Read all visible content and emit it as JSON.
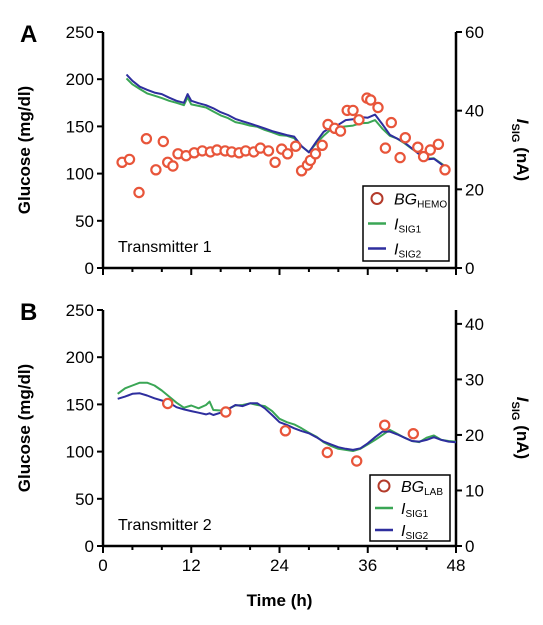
{
  "chart_data": [
    {
      "type": "line",
      "panel_letter": "A",
      "annotation": "Transmitter 1",
      "xlim": [
        0,
        48
      ],
      "ylim": [
        0,
        250
      ],
      "y2lim": [
        0,
        60
      ],
      "x_ticks": [
        0,
        12,
        24,
        36,
        48
      ],
      "y_ticks": [
        0,
        50,
        100,
        150,
        200,
        250
      ],
      "y2_ticks": [
        0,
        20,
        40,
        60
      ],
      "ylabel": "Glucose (mg/dl)",
      "y2label": {
        "main": "I",
        "sub": "SIG",
        "unit": " (nA)"
      },
      "legend": {
        "position": "bottom-right",
        "entries": [
          {
            "main": "BG",
            "sub": "HEMO",
            "marker": "circle"
          },
          {
            "main": "I",
            "sub": "SIG1",
            "marker": "line"
          },
          {
            "main": "I",
            "sub": "SIG2",
            "marker": "line"
          }
        ]
      },
      "colors": {
        "marker": "#e8553a",
        "sig1": "#3aa655",
        "sig2": "#2e2e9e"
      },
      "series": [
        {
          "name": "BG_HEMO",
          "kind": "scatter",
          "x": [
            2.6,
            3.6,
            4.9,
            5.9,
            7.2,
            8.2,
            8.8,
            9.5,
            10.2,
            11.3,
            12.4,
            13.5,
            14.6,
            15.5,
            16.6,
            17.5,
            18.5,
            19.4,
            20.5,
            21.4,
            22.5,
            23.4,
            24.3,
            25.1,
            26.2,
            27.0,
            27.8,
            28.2,
            28.9,
            29.8,
            30.6,
            31.5,
            32.3,
            33.2,
            34.0,
            34.8,
            35.9,
            36.4,
            37.4,
            38.4,
            39.2,
            40.4,
            41.1,
            42.8,
            43.6,
            44.5,
            45.6,
            46.5
          ],
          "values": [
            112,
            115,
            80,
            137,
            104,
            134,
            112,
            108,
            121,
            119,
            122,
            124,
            123,
            125,
            124,
            123,
            122,
            124,
            123,
            127,
            124,
            112,
            126,
            121,
            129,
            103,
            109,
            114,
            121,
            130,
            152,
            148,
            145,
            167,
            167,
            157,
            180,
            178,
            170,
            127,
            154,
            117,
            138,
            128,
            118,
            125,
            131,
            104
          ]
        },
        {
          "name": "I_SIG1",
          "kind": "line",
          "axis": "y2",
          "x": [
            3.2,
            4.0,
            5.0,
            6.0,
            7.0,
            8.0,
            9.0,
            10.0,
            11.0,
            11.5,
            12.0,
            13.0,
            14.0,
            15.0,
            16.0,
            17.0,
            18.0,
            19.0,
            20.0,
            21.0,
            22.0,
            23.0,
            24.0,
            25.0,
            26.0,
            27.0,
            28.0,
            29.0,
            30.0,
            31.0,
            32.0,
            33.0,
            34.0,
            35.0,
            36.0,
            37.0,
            38.0,
            39.0,
            40.0,
            41.0,
            42.0,
            43.0,
            44.0,
            45.0,
            46.5
          ],
          "values": [
            48.2,
            46.7,
            45.5,
            44.4,
            43.8,
            43.2,
            42.5,
            42.0,
            41.4,
            43.4,
            41.6,
            41.2,
            40.8,
            39.8,
            38.8,
            38.1,
            37.1,
            36.7,
            36.2,
            35.9,
            35.1,
            34.5,
            33.8,
            33.6,
            33.0,
            30.9,
            29.5,
            31.7,
            33.6,
            35.3,
            35.8,
            36.0,
            36.2,
            36.8,
            36.9,
            37.6,
            35.4,
            33.6,
            32.9,
            31.7,
            30.3,
            29.1,
            27.8,
            27.9,
            25.9
          ]
        },
        {
          "name": "I_SIG2",
          "kind": "line",
          "axis": "y2",
          "x": [
            3.2,
            4.0,
            5.0,
            6.0,
            7.0,
            8.0,
            9.0,
            10.0,
            11.0,
            11.5,
            12.0,
            13.0,
            14.0,
            15.0,
            16.0,
            17.0,
            18.0,
            19.0,
            20.0,
            21.0,
            22.0,
            23.0,
            24.0,
            25.0,
            26.0,
            27.0,
            28.0,
            29.0,
            30.0,
            31.0,
            32.0,
            33.0,
            34.0,
            35.0,
            36.0,
            37.0,
            38.0,
            39.0,
            40.0,
            41.0,
            42.0,
            43.0,
            44.0,
            45.0,
            46.5
          ],
          "values": [
            49.2,
            47.6,
            46.1,
            45.3,
            44.6,
            44.2,
            43.3,
            42.5,
            42.0,
            44.2,
            42.5,
            41.9,
            41.4,
            40.6,
            39.6,
            38.9,
            37.9,
            37.3,
            36.7,
            36.1,
            35.5,
            34.8,
            34.3,
            33.8,
            33.4,
            31.0,
            29.4,
            32.1,
            34.6,
            35.8,
            36.4,
            37.6,
            37.8,
            38.4,
            38.2,
            39.0,
            36.5,
            33.9,
            32.9,
            31.9,
            30.4,
            28.9,
            27.6,
            27.8,
            25.7
          ]
        }
      ]
    },
    {
      "type": "line",
      "panel_letter": "B",
      "annotation": "Transmitter 2",
      "xlim": [
        0,
        48
      ],
      "ylim": [
        0,
        250
      ],
      "y2lim": [
        0,
        42.5
      ],
      "x_ticks": [
        0,
        12,
        24,
        36,
        48
      ],
      "y_ticks": [
        0,
        50,
        100,
        150,
        200,
        250
      ],
      "y2_ticks": [
        0,
        10,
        20,
        30,
        40
      ],
      "xlabel": "Time (h)",
      "ylabel": "Glucose (mg/dl)",
      "y2label": {
        "main": "I",
        "sub": "SIG",
        "unit": " (nA)"
      },
      "legend": {
        "position": "bottom-right",
        "entries": [
          {
            "main": "BG",
            "sub": "LAB",
            "marker": "circle"
          },
          {
            "main": "I",
            "sub": "SIG1",
            "marker": "line"
          },
          {
            "main": "I",
            "sub": "SIG2",
            "marker": "line"
          }
        ]
      },
      "colors": {
        "marker": "#e8553a",
        "sig1": "#3aa655",
        "sig2": "#2e2e9e"
      },
      "series": [
        {
          "name": "BG_LAB",
          "kind": "scatter",
          "x": [
            8.8,
            16.7,
            24.8,
            30.5,
            34.5,
            38.3,
            42.2
          ],
          "values": [
            151,
            142,
            122,
            99,
            90,
            128,
            119
          ]
        },
        {
          "name": "I_SIG1",
          "kind": "line",
          "axis": "y2",
          "x": [
            2.0,
            3.0,
            4.0,
            5.0,
            6.0,
            7.0,
            8.0,
            9.0,
            10.0,
            11.0,
            12.0,
            13.0,
            14.0,
            14.5,
            15.0,
            16.0,
            17.0,
            18.0,
            19.0,
            20.0,
            21.0,
            22.0,
            23.0,
            24.0,
            25.0,
            26.0,
            27.0,
            28.0,
            29.0,
            30.0,
            31.0,
            32.0,
            33.0,
            34.0,
            35.0,
            36.0,
            37.0,
            38.0,
            39.0,
            40.0,
            41.0,
            42.0,
            43.0,
            44.0,
            45.0,
            46.0,
            47.0,
            48.0
          ],
          "values": [
            27.4,
            28.4,
            28.9,
            29.4,
            29.4,
            28.9,
            28.0,
            26.9,
            25.8,
            24.9,
            25.3,
            24.8,
            25.4,
            26.0,
            24.5,
            24.4,
            24.7,
            25.3,
            25.4,
            25.7,
            25.4,
            25.2,
            24.3,
            22.9,
            22.3,
            21.9,
            21.2,
            20.4,
            19.7,
            18.7,
            18.0,
            17.5,
            17.3,
            17.1,
            17.5,
            18.3,
            19.1,
            20.0,
            20.9,
            20.2,
            19.5,
            18.9,
            18.7,
            19.5,
            19.9,
            19.1,
            18.9,
            18.8
          ]
        },
        {
          "name": "I_SIG2",
          "kind": "line",
          "axis": "y2",
          "x": [
            2.0,
            3.0,
            4.0,
            5.0,
            6.0,
            7.0,
            8.0,
            9.0,
            10.0,
            11.0,
            12.0,
            13.0,
            14.0,
            14.5,
            15.0,
            16.0,
            17.0,
            18.0,
            19.0,
            20.0,
            21.0,
            22.0,
            23.0,
            24.0,
            25.0,
            26.0,
            27.0,
            28.0,
            29.0,
            30.0,
            31.0,
            32.0,
            33.0,
            34.0,
            35.0,
            36.0,
            37.0,
            38.0,
            39.0,
            40.0,
            41.0,
            42.0,
            43.0,
            44.0,
            45.0,
            46.0,
            47.0,
            48.0
          ],
          "values": [
            26.5,
            26.9,
            27.4,
            27.5,
            27.1,
            26.6,
            26.2,
            25.8,
            25.0,
            24.6,
            24.3,
            24.0,
            23.7,
            23.9,
            23.6,
            24.0,
            24.6,
            25.4,
            25.2,
            25.7,
            25.7,
            24.8,
            23.6,
            22.3,
            21.8,
            21.2,
            20.7,
            20.3,
            19.6,
            18.8,
            18.3,
            17.8,
            17.5,
            17.3,
            17.6,
            18.5,
            19.6,
            20.6,
            20.6,
            20.1,
            19.5,
            18.9,
            18.8,
            19.1,
            19.6,
            19.1,
            18.8,
            18.7
          ]
        }
      ]
    }
  ]
}
